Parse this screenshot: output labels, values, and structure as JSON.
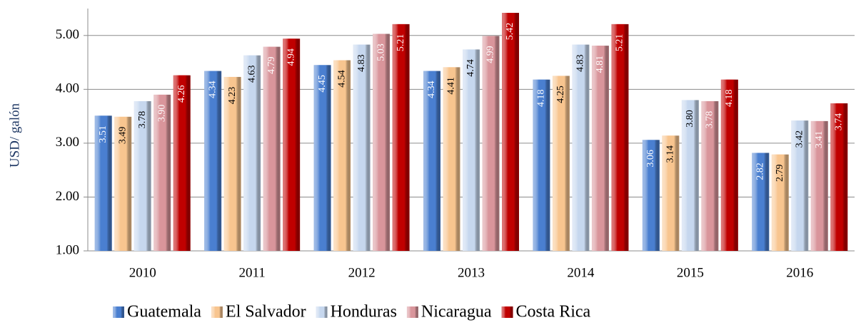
{
  "chart_data": {
    "type": "bar",
    "y_label": "USD/ galón",
    "categories": [
      "2010",
      "2011",
      "2012",
      "2013",
      "2014",
      "2015",
      "2016"
    ],
    "series": [
      {
        "name": "Guatemala",
        "color": "#4a7fd0",
        "values": [
          3.51,
          4.34,
          4.45,
          4.34,
          4.18,
          3.06,
          2.82
        ],
        "value_labels": [
          "3.51",
          "4.34",
          "4.45",
          "4.34",
          "4.18",
          "3.06",
          "2.82"
        ]
      },
      {
        "name": "El Salvador",
        "color": "#f8c58f",
        "values": [
          3.49,
          4.23,
          4.54,
          4.41,
          4.25,
          3.14,
          2.79
        ],
        "value_labels": [
          "3.49",
          "4.23",
          "4.54",
          "4.41",
          "4.25",
          "3.14",
          "2.79"
        ]
      },
      {
        "name": "Honduras",
        "color": "#c6d7ee",
        "values": [
          3.78,
          4.63,
          4.83,
          4.74,
          4.83,
          3.8,
          3.42
        ],
        "value_labels": [
          "3.78",
          "4.63",
          "4.83",
          "4.74",
          "4.83",
          "3.80",
          "3.42"
        ]
      },
      {
        "name": "Nicaragua",
        "color": "#d9959b",
        "values": [
          3.9,
          4.79,
          5.03,
          4.99,
          4.81,
          3.78,
          3.41
        ],
        "value_labels": [
          "3.90",
          "4.79",
          "5.03",
          "4.99",
          "4.81",
          "3.78",
          "3.41"
        ]
      },
      {
        "name": "Costa Rica",
        "color": "#c00000",
        "values": [
          4.26,
          4.94,
          5.21,
          5.42,
          5.21,
          4.18,
          3.74
        ],
        "value_labels": [
          "4.26",
          "4.94",
          "5.21",
          "5.42",
          "5.21",
          "4.18",
          "3.74"
        ]
      }
    ],
    "ylim": [
      1,
      5.5
    ],
    "yticks": [
      {
        "value": 1,
        "label": "1.00"
      },
      {
        "value": 2,
        "label": "2.00"
      },
      {
        "value": 3,
        "label": "3.00"
      },
      {
        "value": 4,
        "label": "4.00"
      },
      {
        "value": 5,
        "label": "5.00"
      }
    ],
    "grid": true,
    "legend": "bottom"
  }
}
